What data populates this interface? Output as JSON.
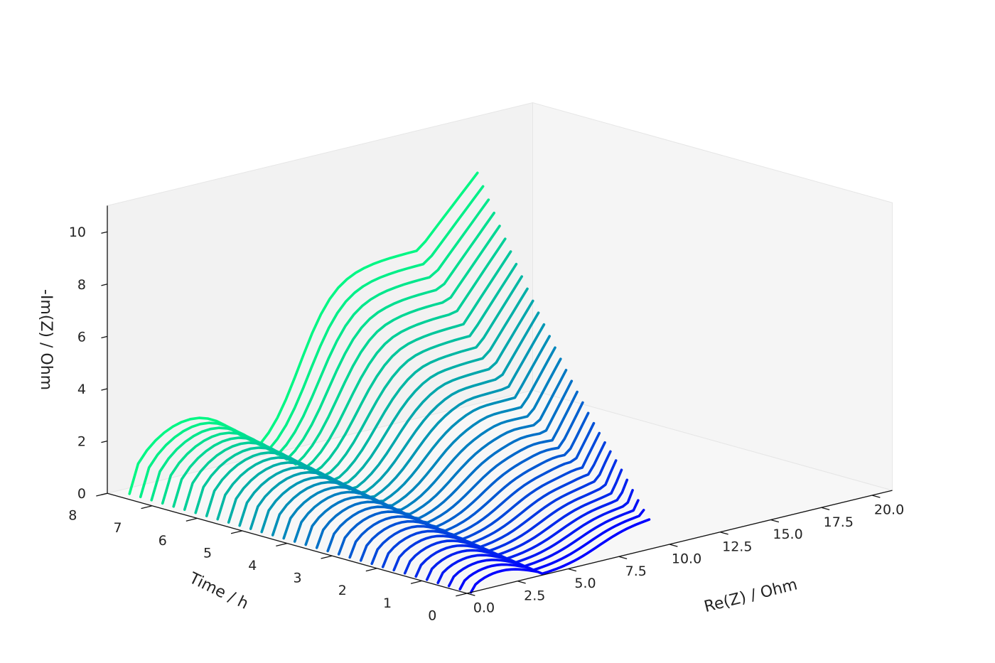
{
  "chart_data": {
    "type": "line",
    "projection": "3d",
    "xlabel": "Re(Z) / Ohm",
    "ylabel": "Time / h",
    "zlabel": "-Im(Z) / Ohm",
    "xticks": [
      "0.0",
      "2.5",
      "5.0",
      "7.5",
      "10.0",
      "12.5",
      "15.0",
      "17.5",
      "20.0"
    ],
    "yticks": [
      "0",
      "1",
      "2",
      "3",
      "4",
      "5",
      "6",
      "7",
      "8"
    ],
    "zticks": [
      "0",
      "2",
      "4",
      "6",
      "8",
      "10"
    ],
    "xlim": [
      0,
      21
    ],
    "ylim": [
      0,
      8
    ],
    "zlim": [
      0,
      11
    ],
    "grid": false,
    "colormap_start": "#0000ff",
    "colormap_end": "#00ff80",
    "series_count": 32,
    "series_times_h": [
      0.0,
      0.25,
      0.5,
      0.75,
      1.0,
      1.25,
      1.5,
      1.75,
      2.0,
      2.25,
      2.5,
      2.75,
      3.0,
      3.25,
      3.5,
      3.75,
      4.0,
      4.25,
      4.5,
      4.75,
      5.0,
      5.25,
      5.5,
      5.75,
      6.0,
      6.25,
      6.5,
      6.75,
      7.0,
      7.25,
      7.5,
      7.75
    ],
    "series_shape_note_points_per_series": 20
  }
}
